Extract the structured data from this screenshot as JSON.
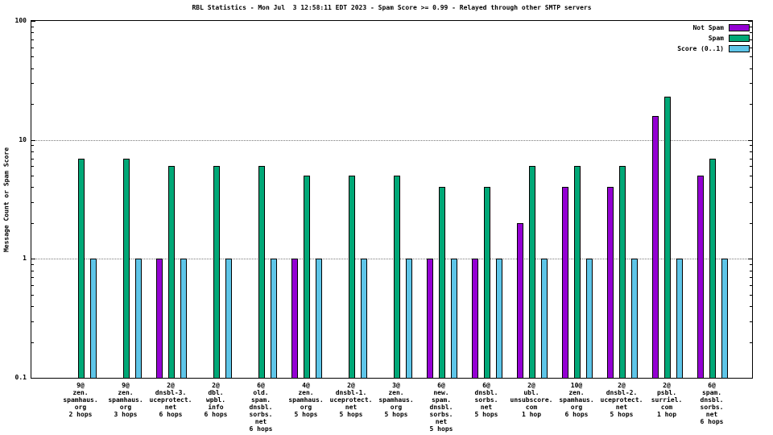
{
  "page": {
    "background": "#ffffff"
  },
  "chart_data": {
    "type": "bar",
    "title": "RBL Statistics - Mon Jul  3 12:58:11 EDT 2023 - Spam Score >= 0.99 - Relayed through other SMTP servers",
    "ylabel": "Message Count or Spam Score",
    "yscale": "log",
    "ylim": [
      0.1,
      100
    ],
    "grid": "horizontal dotted lines at decades",
    "legend_position": "top-right-inside",
    "yticks": [
      {
        "label": "100",
        "value": 100
      },
      {
        "label": "10",
        "value": 10
      },
      {
        "label": "1",
        "value": 1
      },
      {
        "label": "0.1",
        "value": 0.1
      }
    ],
    "categories": [
      {
        "label": "9@zen.spamhaus.org 2 hops",
        "lines": [
          "9@",
          "zen.",
          "spamhaus.",
          "org",
          "2 hops"
        ]
      },
      {
        "label": "9@zen.spamhaus.org 3 hops",
        "lines": [
          "9@",
          "zen.",
          "spamhaus.",
          "org",
          "3 hops"
        ]
      },
      {
        "label": "2@dnsbl-3.uceprotect.net 6 hops",
        "lines": [
          "2@",
          "dnsbl-3.",
          "uceprotect.",
          "net",
          "6 hops"
        ]
      },
      {
        "label": "2@dbl.wpbl.info 6 hops",
        "lines": [
          "2@",
          "dbl.",
          "wpbl.",
          "info",
          "6 hops"
        ]
      },
      {
        "label": "6@old.spam.dnsbl.sorbs.net 6 hops",
        "lines": [
          "6@",
          "old.",
          "spam.",
          "dnsbl.",
          "sorbs.",
          "net",
          "6 hops"
        ]
      },
      {
        "label": "4@zen.spamhaus.org 5 hops",
        "lines": [
          "4@",
          "zen.",
          "spamhaus.",
          "org",
          "5 hops"
        ]
      },
      {
        "label": "2@dnsbl-1.uceprotect.net 5 hops",
        "lines": [
          "2@",
          "dnsbl-1.",
          "uceprotect.",
          "net",
          "5 hops"
        ]
      },
      {
        "label": "3@zen.spamhaus.org 5 hops",
        "lines": [
          "3@",
          "zen.",
          "spamhaus.",
          "org",
          "5 hops"
        ]
      },
      {
        "label": "6@new.spam.dnsbl.sorbs.net 5 hops",
        "lines": [
          "6@",
          "new.",
          "spam.",
          "dnsbl.",
          "sorbs.",
          "net",
          "5 hops"
        ]
      },
      {
        "label": "6@dnsbl.sorbs.net 5 hops",
        "lines": [
          "6@",
          "dnsbl.",
          "sorbs.",
          "net",
          "5 hops"
        ]
      },
      {
        "label": "2@ubl.unsubscore.com 1 hop",
        "lines": [
          "2@",
          "ubl.",
          "unsubscore.",
          "com",
          "1 hop"
        ]
      },
      {
        "label": "10@zen.spamhaus.org 6 hops",
        "lines": [
          "10@",
          "zen.",
          "spamhaus.",
          "org",
          "6 hops"
        ]
      },
      {
        "label": "2@dnsbl-2.uceprotect.net 5 hops",
        "lines": [
          "2@",
          "dnsbl-2.",
          "uceprotect.",
          "net",
          "5 hops"
        ]
      },
      {
        "label": "2@psbl.surriel.com 1 hop",
        "lines": [
          "2@",
          "psbl.",
          "surriel.",
          "com",
          "1 hop"
        ]
      },
      {
        "label": "6@spam.dnsbl.sorbs.net 6 hops",
        "lines": [
          "6@",
          "spam.",
          "dnsbl.",
          "sorbs.",
          "net",
          "6 hops"
        ]
      }
    ],
    "series": [
      {
        "name": "Not Spam",
        "color": "#9400d3",
        "values": [
          null,
          null,
          1,
          null,
          null,
          1,
          null,
          null,
          1,
          1,
          2,
          4,
          4,
          16,
          5
        ]
      },
      {
        "name": "Spam",
        "color": "#00a877",
        "values": [
          7,
          7,
          6,
          6,
          6,
          5,
          5,
          5,
          4,
          4,
          6,
          6,
          6,
          23,
          7
        ]
      },
      {
        "name": "Score (0..1)",
        "color": "#5ec5e8",
        "values": [
          1,
          1,
          1,
          1,
          1,
          1,
          1,
          1,
          1,
          1,
          1,
          1,
          1,
          1,
          1
        ]
      }
    ]
  }
}
